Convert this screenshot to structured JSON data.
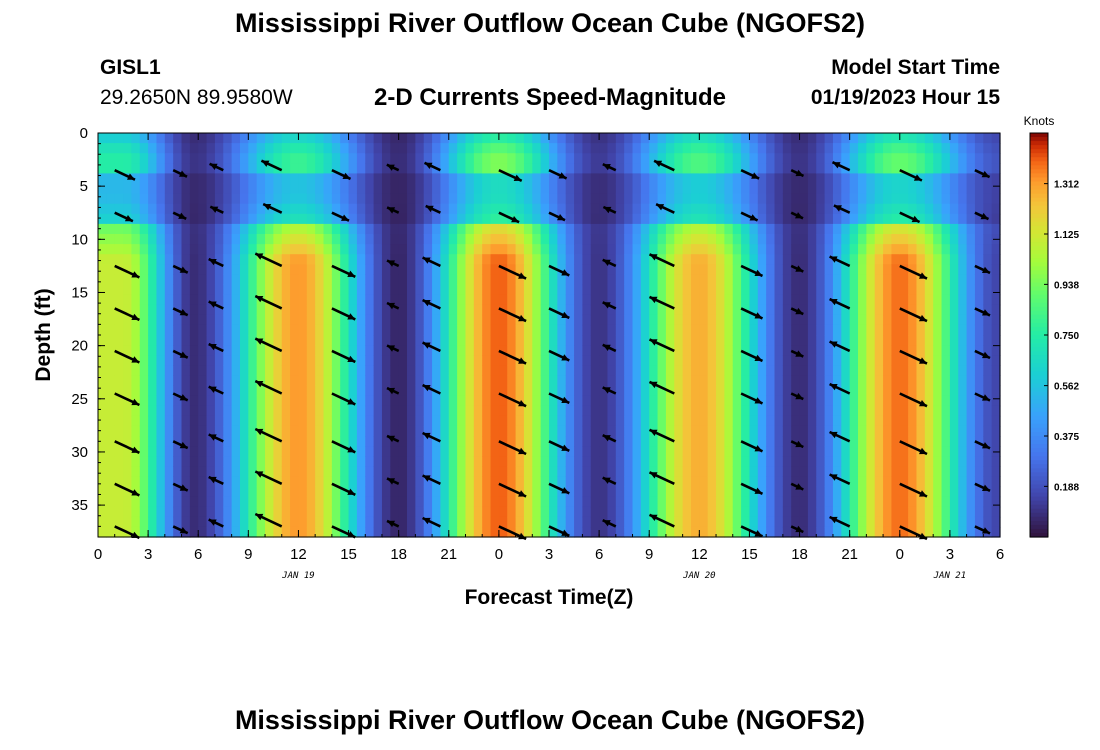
{
  "header": {
    "title": "Mississippi River Outflow Ocean Cube (NGOFS2)",
    "station_id": "GISL1",
    "station_coords": "29.2650N  89.9580W",
    "subtitle": "2-D Currents Speed-Magnitude",
    "start_label": "Model Start Time",
    "start_value": "01/19/2023 Hour 15",
    "footer_title": "Mississippi River Outflow Ocean Cube (NGOFS2)"
  },
  "chart_data": {
    "type": "heatmap",
    "title": "2-D Currents Speed-Magnitude",
    "xlabel": "Forecast Time(Z)",
    "ylabel": "Depth (ft)",
    "x_unit": "hours from 2023-01-19 00Z",
    "xlim": [
      0,
      54
    ],
    "ylim": [
      0,
      38
    ],
    "y_inverted": true,
    "x_tick_values": [
      0,
      3,
      6,
      9,
      12,
      15,
      18,
      21,
      24,
      27,
      30,
      33,
      36,
      39,
      42,
      45,
      48,
      51,
      54
    ],
    "x_tick_labels": [
      "0",
      "3",
      "6",
      "9",
      "12",
      "15",
      "18",
      "21",
      "0",
      "3",
      "6",
      "9",
      "12",
      "15",
      "18",
      "21",
      "0",
      "3",
      "6"
    ],
    "y_ticks": [
      0,
      5,
      10,
      15,
      20,
      25,
      30,
      35
    ],
    "date_labels": [
      {
        "text": "JAN 19",
        "x": 12
      },
      {
        "text": "JAN 20",
        "x": 36
      },
      {
        "text": "JAN 21",
        "x": 51
      }
    ],
    "colorbar": {
      "label": "Knots",
      "min": 0,
      "max": 1.5,
      "ticks": [
        0.188,
        0.375,
        0.562,
        0.75,
        0.938,
        1.125,
        1.312
      ]
    },
    "speed_peaks": [
      {
        "t": 1.5,
        "surface": 0.75,
        "bottom": 1.1
      },
      {
        "t": 5.8,
        "surface": 0.1,
        "bottom": 0.08
      },
      {
        "t": 12.0,
        "surface": 0.8,
        "bottom": 1.32
      },
      {
        "t": 18.0,
        "surface": 0.08,
        "bottom": 0.06
      },
      {
        "t": 24.0,
        "surface": 0.95,
        "bottom": 1.4
      },
      {
        "t": 30.0,
        "surface": 0.12,
        "bottom": 0.1
      },
      {
        "t": 36.0,
        "surface": 0.85,
        "bottom": 1.28
      },
      {
        "t": 42.0,
        "surface": 0.1,
        "bottom": 0.08
      },
      {
        "t": 48.0,
        "surface": 0.9,
        "bottom": 1.38
      },
      {
        "t": 54.0,
        "surface": 0.2,
        "bottom": 0.15
      }
    ],
    "arrow_columns": [
      1,
      4.5,
      7.5,
      11,
      14,
      18,
      20.5,
      24,
      27,
      31,
      34.5,
      38.5,
      41.5,
      45,
      48,
      52.5
    ],
    "arrow_depths": [
      3.5,
      7.5,
      12.5,
      16.5,
      20.5,
      24.5,
      29,
      33,
      37
    ]
  }
}
